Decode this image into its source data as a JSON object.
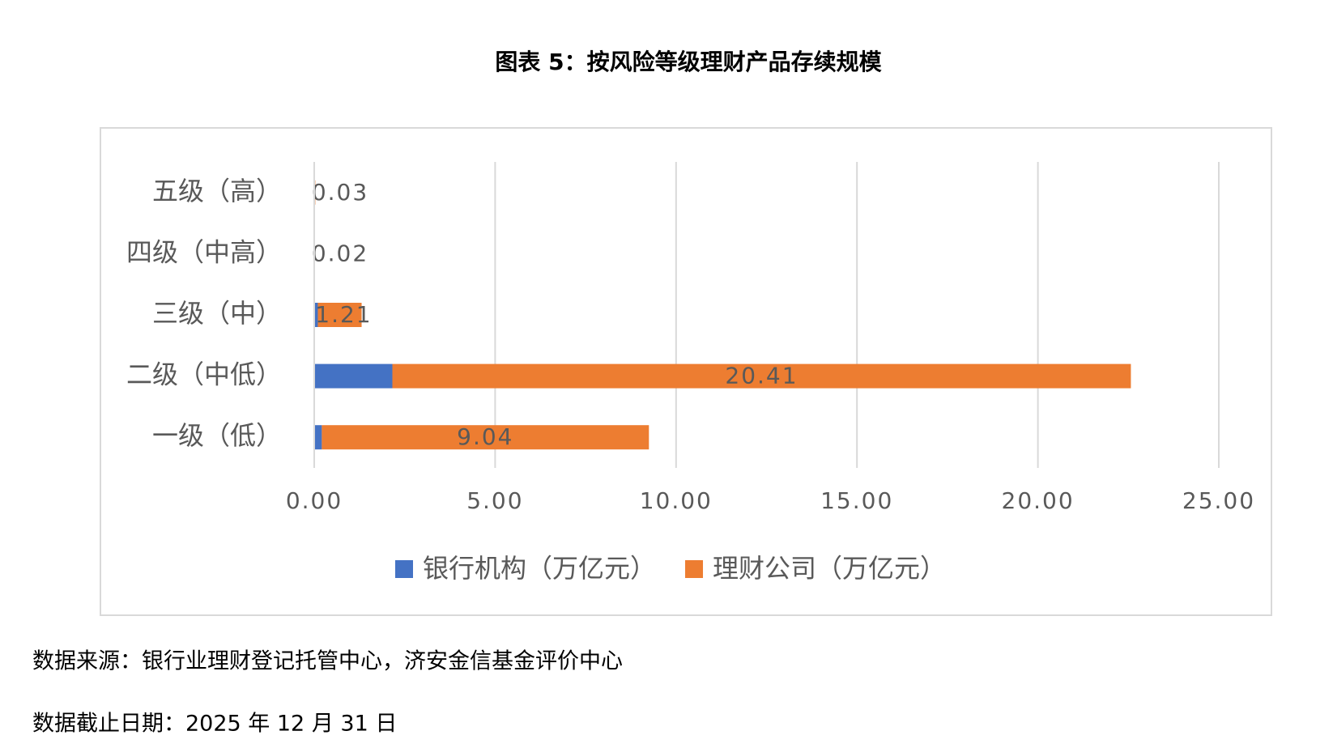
{
  "chart_data": {
    "type": "stacked-bar-horizontal",
    "title": "图表 5：按风险等级理财产品存续规模",
    "categories": [
      "五级（高）",
      "四级（中高）",
      "三级（中）",
      "二级（中低）",
      "一级（低）"
    ],
    "series": [
      {
        "name": "银行机构（万亿元）",
        "color": "#4472c4",
        "values": [
          0,
          0,
          0.1,
          2.16,
          0.21
        ],
        "data_labels": false
      },
      {
        "name": "理财公司（万亿元）",
        "color": "#ed7d31",
        "values": [
          0.03,
          0.02,
          1.21,
          20.41,
          9.04
        ],
        "data_labels": true
      }
    ],
    "xlim": [
      0,
      25
    ],
    "xticks": [
      {
        "value": 0,
        "label": "0.00"
      },
      {
        "value": 5,
        "label": "5.00"
      },
      {
        "value": 10,
        "label": "10.00"
      },
      {
        "value": 15,
        "label": "15.00"
      },
      {
        "value": 20,
        "label": "20.00"
      },
      {
        "value": 25,
        "label": "25.00"
      }
    ],
    "grid": true,
    "legend": "bottom"
  },
  "notes": {
    "source": "数据来源：银行业理财登记托管中心，济安金信基金评价中心",
    "date": "数据截止日期：2025 年 12 月 31 日"
  }
}
